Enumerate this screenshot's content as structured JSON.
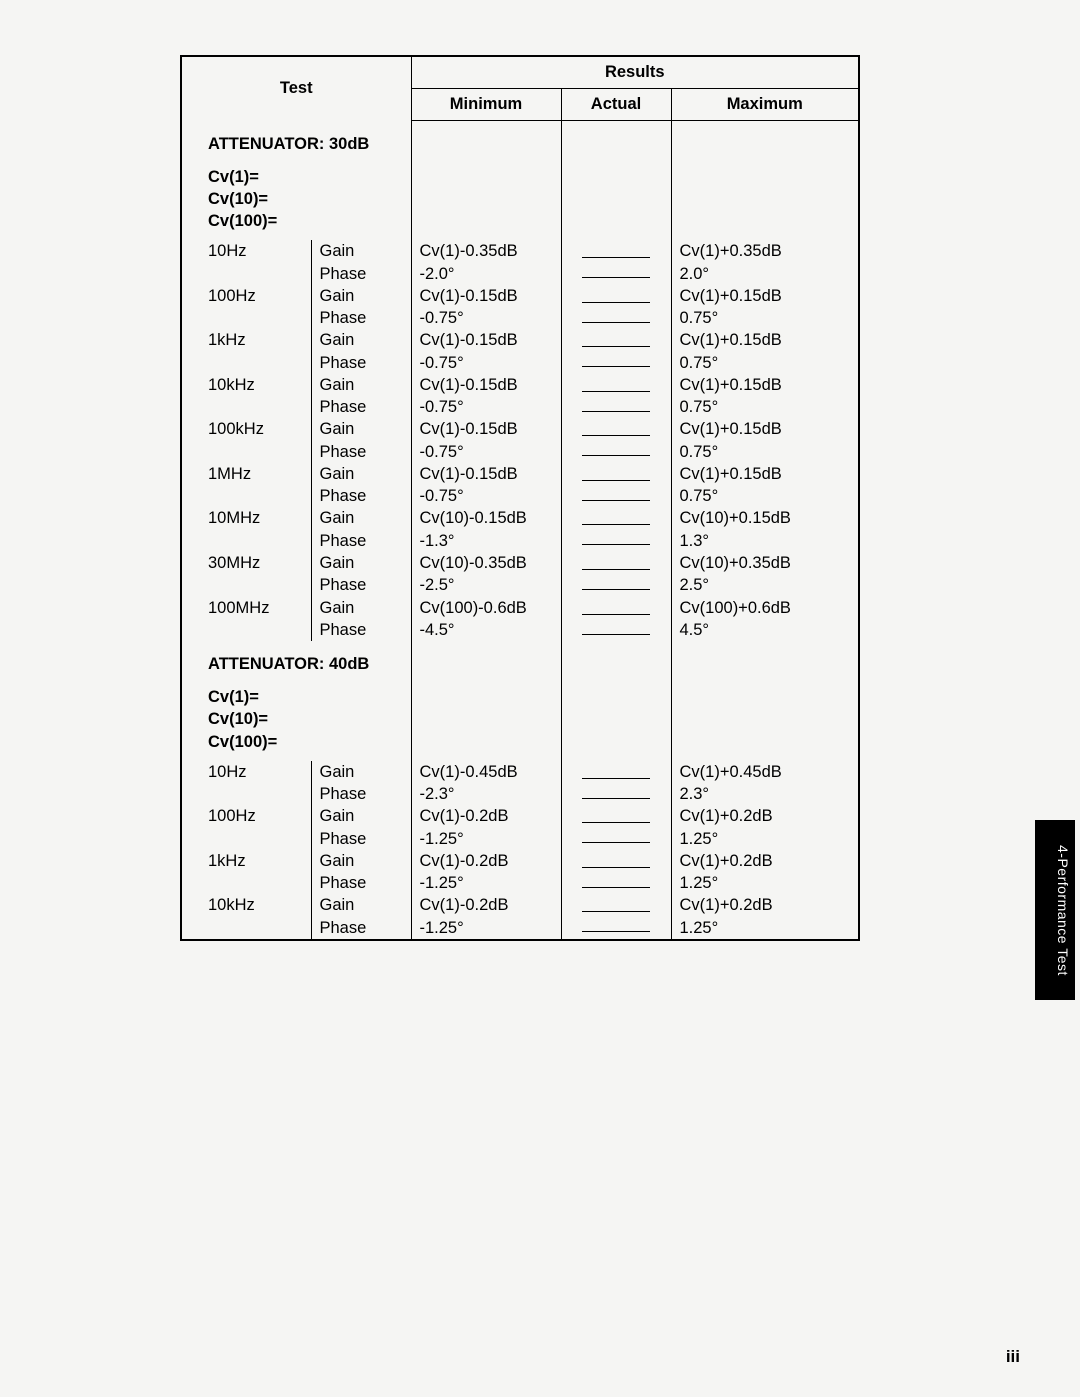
{
  "headers": {
    "test": "Test",
    "results": "Results",
    "minimum": "Minimum",
    "actual": "Actual",
    "maximum": "Maximum"
  },
  "sections": [
    {
      "title": "ATTENUATOR: 30dB",
      "cv_lines": [
        "Cv(1)=",
        "Cv(10)=",
        "Cv(100)="
      ],
      "rows": [
        {
          "freq": "10Hz",
          "m1": "Gain",
          "m2": "Phase",
          "min1": "Cv(1)-0.35dB",
          "min2": "-2.0°",
          "max1": "Cv(1)+0.35dB",
          "max2": "2.0°"
        },
        {
          "freq": "100Hz",
          "m1": "Gain",
          "m2": "Phase",
          "min1": "Cv(1)-0.15dB",
          "min2": "-0.75°",
          "max1": "Cv(1)+0.15dB",
          "max2": "0.75°"
        },
        {
          "freq": "1kHz",
          "m1": "Gain",
          "m2": "Phase",
          "min1": "Cv(1)-0.15dB",
          "min2": "-0.75°",
          "max1": "Cv(1)+0.15dB",
          "max2": "0.75°"
        },
        {
          "freq": "10kHz",
          "m1": "Gain",
          "m2": "Phase",
          "min1": "Cv(1)-0.15dB",
          "min2": "-0.75°",
          "max1": "Cv(1)+0.15dB",
          "max2": "0.75°"
        },
        {
          "freq": "100kHz",
          "m1": "Gain",
          "m2": "Phase",
          "min1": "Cv(1)-0.15dB",
          "min2": "-0.75°",
          "max1": "Cv(1)+0.15dB",
          "max2": "0.75°"
        },
        {
          "freq": "1MHz",
          "m1": "Gain",
          "m2": "Phase",
          "min1": "Cv(1)-0.15dB",
          "min2": "-0.75°",
          "max1": "Cv(1)+0.15dB",
          "max2": "0.75°"
        },
        {
          "freq": "10MHz",
          "m1": "Gain",
          "m2": "Phase",
          "min1": "Cv(10)-0.15dB",
          "min2": "-1.3°",
          "max1": "Cv(10)+0.15dB",
          "max2": "1.3°"
        },
        {
          "freq": "30MHz",
          "m1": "Gain",
          "m2": "Phase",
          "min1": "Cv(10)-0.35dB",
          "min2": "-2.5°",
          "max1": "Cv(10)+0.35dB",
          "max2": "2.5°"
        },
        {
          "freq": "100MHz",
          "m1": "Gain",
          "m2": "Phase",
          "min1": "Cv(100)-0.6dB",
          "min2": "-4.5°",
          "max1": "Cv(100)+0.6dB",
          "max2": "4.5°"
        }
      ]
    },
    {
      "title": "ATTENUATOR: 40dB",
      "cv_lines": [
        "Cv(1)=",
        "Cv(10)=",
        "Cv(100)="
      ],
      "rows": [
        {
          "freq": "10Hz",
          "m1": "Gain",
          "m2": "Phase",
          "min1": "Cv(1)-0.45dB",
          "min2": "-2.3°",
          "max1": "Cv(1)+0.45dB",
          "max2": "2.3°"
        },
        {
          "freq": "100Hz",
          "m1": "Gain",
          "m2": "Phase",
          "min1": "Cv(1)-0.2dB",
          "min2": "-1.25°",
          "max1": "Cv(1)+0.2dB",
          "max2": "1.25°"
        },
        {
          "freq": "1kHz",
          "m1": "Gain",
          "m2": "Phase",
          "min1": "Cv(1)-0.2dB",
          "min2": "-1.25°",
          "max1": "Cv(1)+0.2dB",
          "max2": "1.25°"
        },
        {
          "freq": "10kHz",
          "m1": "Gain",
          "m2": "Phase",
          "min1": "Cv(1)-0.2dB",
          "min2": "-1.25°",
          "max1": "Cv(1)+0.2dB",
          "max2": "1.25°"
        }
      ]
    }
  ],
  "side_tab": "4-Performance\nTest",
  "page_number": "iii"
}
